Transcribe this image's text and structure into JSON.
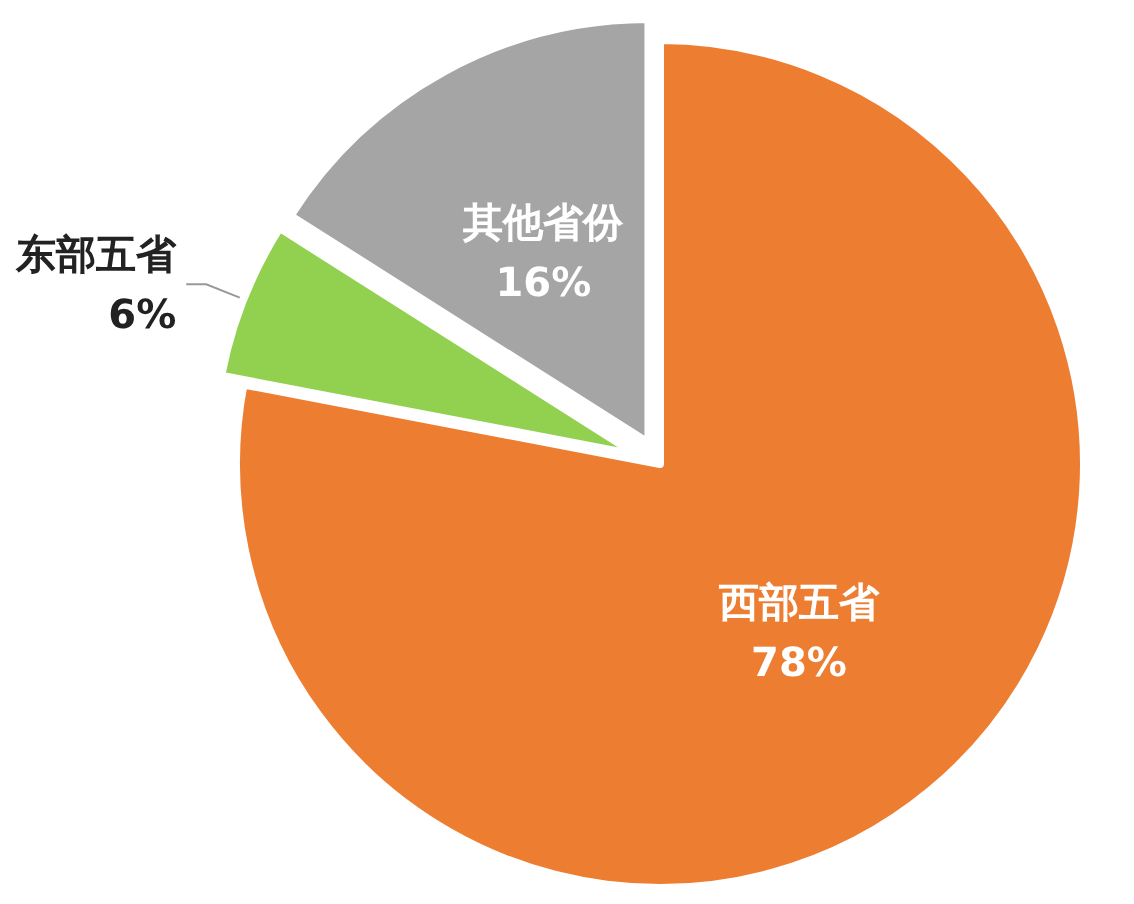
{
  "chart_data": {
    "type": "pie",
    "categories": [
      "西部五省",
      "东部五省",
      "其他省份"
    ],
    "values": [
      78,
      6,
      16
    ],
    "colors": [
      "#ed7d31",
      "#92d050",
      "#a5a5a5"
    ],
    "value_labels": [
      "78%",
      "6%",
      "16%"
    ]
  }
}
